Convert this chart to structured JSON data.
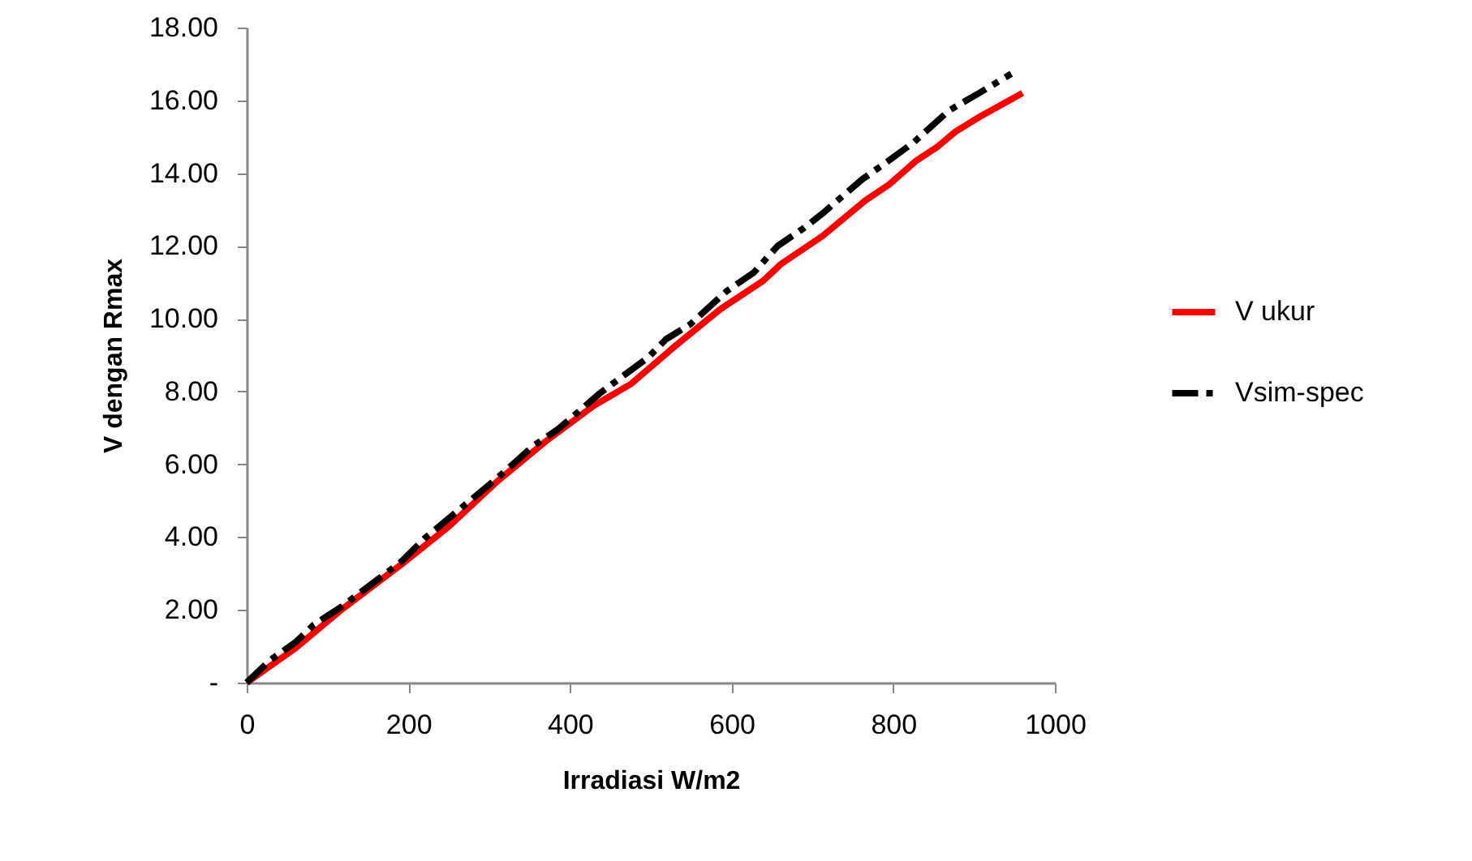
{
  "chart_data": {
    "type": "line",
    "xlabel": "Irradiasi W/m2",
    "ylabel": "V dengan Rmax",
    "xlim": [
      0,
      1000
    ],
    "xticks": [
      0,
      200,
      400,
      600,
      800,
      1000
    ],
    "ylim": [
      0,
      18
    ],
    "yticks": [
      {
        "value": 0,
        "label": "-"
      },
      {
        "value": 2,
        "label": "2.00"
      },
      {
        "value": 4,
        "label": "4.00"
      },
      {
        "value": 6,
        "label": "6.00"
      },
      {
        "value": 8,
        "label": "8.00"
      },
      {
        "value": 10,
        "label": "10.00"
      },
      {
        "value": 12,
        "label": "12.00"
      },
      {
        "value": 14,
        "label": "14.00"
      },
      {
        "value": 16,
        "label": "16.00"
      },
      {
        "value": 18,
        "label": "18.00"
      }
    ],
    "grid": false,
    "legend": "right",
    "marker": "none",
    "series": [
      {
        "name": "V ukur",
        "color": "#ff0000",
        "line_style": "solid",
        "x": [
          0,
          61,
          117,
          191,
          251,
          311,
          370,
          430,
          475,
          527,
          586,
          639,
          661,
          713,
          765,
          795,
          829,
          855,
          877,
          907,
          960
        ],
        "values": [
          0,
          0.96,
          2.0,
          3.24,
          4.31,
          5.55,
          6.63,
          7.62,
          8.2,
          9.19,
          10.26,
          11.04,
          11.5,
          12.28,
          13.24,
          13.69,
          14.35,
          14.73,
          15.14,
          15.55,
          16.2
        ]
      },
      {
        "name": "Vsim-spec",
        "color": "#000000",
        "line_style": "dashed",
        "x": [
          0,
          28,
          61,
          83,
          117,
          191,
          221,
          251,
          311,
          355,
          385,
          437,
          467,
          497,
          519,
          549,
          594,
          627,
          657,
          690,
          713,
          761,
          798,
          825,
          869,
          907,
          946
        ],
        "values": [
          0,
          0.6,
          1.12,
          1.59,
          2.08,
          3.32,
          3.98,
          4.53,
          5.64,
          6.51,
          6.96,
          7.95,
          8.45,
          8.94,
          9.44,
          9.85,
          10.76,
          11.26,
          12.0,
          12.5,
          12.9,
          13.82,
          14.4,
          14.84,
          15.72,
          16.21,
          16.73
        ]
      }
    ]
  }
}
